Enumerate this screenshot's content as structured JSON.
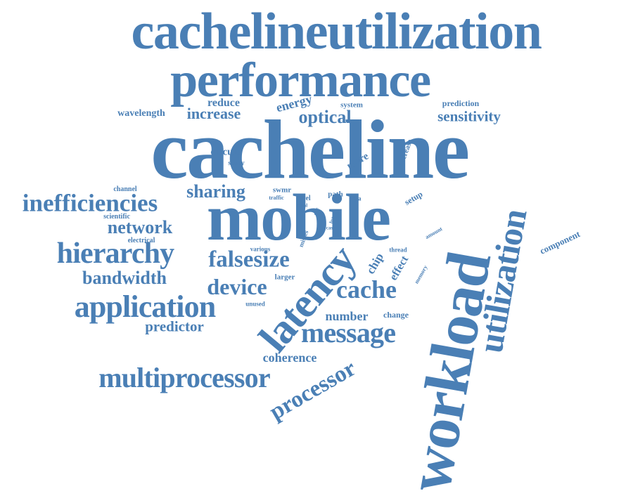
{
  "color": "#4a7fb5",
  "words": [
    {
      "text": "cachelineutilization"
    },
    {
      "text": "performance"
    },
    {
      "text": "cacheline"
    },
    {
      "text": "mobile"
    },
    {
      "text": "workload"
    },
    {
      "text": "latency"
    },
    {
      "text": "utilization"
    },
    {
      "text": "multiprocessor"
    },
    {
      "text": "application"
    },
    {
      "text": "hierarchy"
    },
    {
      "text": "inefficiencies"
    },
    {
      "text": "message"
    },
    {
      "text": "processor"
    },
    {
      "text": "falsesize"
    },
    {
      "text": "cache"
    },
    {
      "text": "device"
    },
    {
      "text": "bandwidth"
    },
    {
      "text": "network"
    },
    {
      "text": "sharing"
    },
    {
      "text": "optical"
    },
    {
      "text": "increase"
    },
    {
      "text": "sensitivity"
    },
    {
      "text": "predictor"
    },
    {
      "text": "coherence"
    },
    {
      "text": "number"
    },
    {
      "text": "energy"
    },
    {
      "text": "reduce"
    },
    {
      "text": "wavelength"
    },
    {
      "text": "circuit"
    },
    {
      "text": "more"
    },
    {
      "text": "chip"
    },
    {
      "text": "effect"
    },
    {
      "text": "component"
    },
    {
      "text": "setup"
    },
    {
      "text": "decrease"
    },
    {
      "text": "prediction"
    },
    {
      "text": "system"
    },
    {
      "text": "larger"
    },
    {
      "text": "change"
    },
    {
      "text": "study"
    },
    {
      "text": "swmr"
    },
    {
      "text": "level"
    },
    {
      "text": "path"
    },
    {
      "text": "data"
    },
    {
      "text": "channel"
    },
    {
      "text": "scientific"
    },
    {
      "text": "electrical"
    },
    {
      "text": "various"
    },
    {
      "text": "unused"
    },
    {
      "text": "misses"
    },
    {
      "text": "thread"
    },
    {
      "text": "memory"
    },
    {
      "text": "amount"
    },
    {
      "text": "traffic"
    },
    {
      "text": "ideal"
    },
    {
      "text": "byte"
    },
    {
      "text": "case"
    },
    {
      "text": "core"
    }
  ]
}
